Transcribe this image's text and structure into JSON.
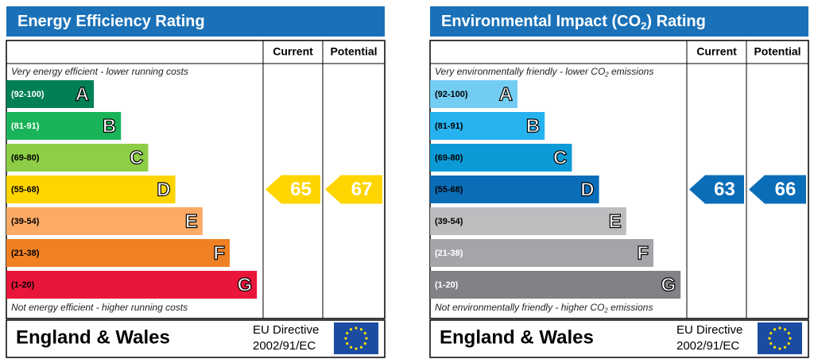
{
  "panels": [
    {
      "title": [
        "Energy Efficiency Rating"
      ],
      "columns": [
        "Current",
        "Potential"
      ],
      "top_note": [
        "Very energy efficient - lower running costs"
      ],
      "bands": [
        {
          "range": "(92-100)",
          "letter": "A",
          "color": "#008054",
          "text_color": "#ffffff"
        },
        {
          "range": "(81-91)",
          "letter": "B",
          "color": "#19b459",
          "text_color": "#ffffff"
        },
        {
          "range": "(69-80)",
          "letter": "C",
          "color": "#8dce46",
          "text_color": "#000000"
        },
        {
          "range": "(55-68)",
          "letter": "D",
          "color": "#ffd500",
          "text_color": "#000000"
        },
        {
          "range": "(39-54)",
          "letter": "E",
          "color": "#fcaa65",
          "text_color": "#000000"
        },
        {
          "range": "(21-38)",
          "letter": "F",
          "color": "#ef8023",
          "text_color": "#000000"
        },
        {
          "range": "(1-20)",
          "letter": "G",
          "color": "#e9153b",
          "text_color": "#000000"
        }
      ],
      "bottom_note": [
        "Not energy efficient - higher running costs"
      ],
      "current": 65,
      "potential": 67,
      "footer": "England & Wales",
      "directive": [
        "EU Directive",
        "2002/91/EC"
      ]
    },
    {
      "title": [
        "Environmental Impact (CO",
        "2",
        ") Rating"
      ],
      "columns": [
        "Current",
        "Potential"
      ],
      "top_note": [
        "Very environmentally friendly - lower CO",
        "2",
        " emissions"
      ],
      "bands": [
        {
          "range": "(92-100)",
          "letter": "A",
          "color": "#73cdf3",
          "text_color": "#000000"
        },
        {
          "range": "(81-91)",
          "letter": "B",
          "color": "#26b2ef",
          "text_color": "#000000"
        },
        {
          "range": "(69-80)",
          "letter": "C",
          "color": "#0c9ad6",
          "text_color": "#000000"
        },
        {
          "range": "(55-68)",
          "letter": "D",
          "color": "#0a6db8",
          "text_color": "#000000"
        },
        {
          "range": "(39-54)",
          "letter": "E",
          "color": "#bbbdbf",
          "text_color": "#000000"
        },
        {
          "range": "(21-38)",
          "letter": "F",
          "color": "#a3a5a8",
          "text_color": "#ffffff"
        },
        {
          "range": "(1-20)",
          "letter": "G",
          "color": "#808285",
          "text_color": "#ffffff"
        }
      ],
      "bottom_note": [
        "Not environmentally friendly - higher CO",
        "2",
        " emissions"
      ],
      "current": 63,
      "potential": 66,
      "footer": "England & Wales",
      "directive": [
        "EU Directive",
        "2002/91/EC"
      ]
    }
  ]
}
